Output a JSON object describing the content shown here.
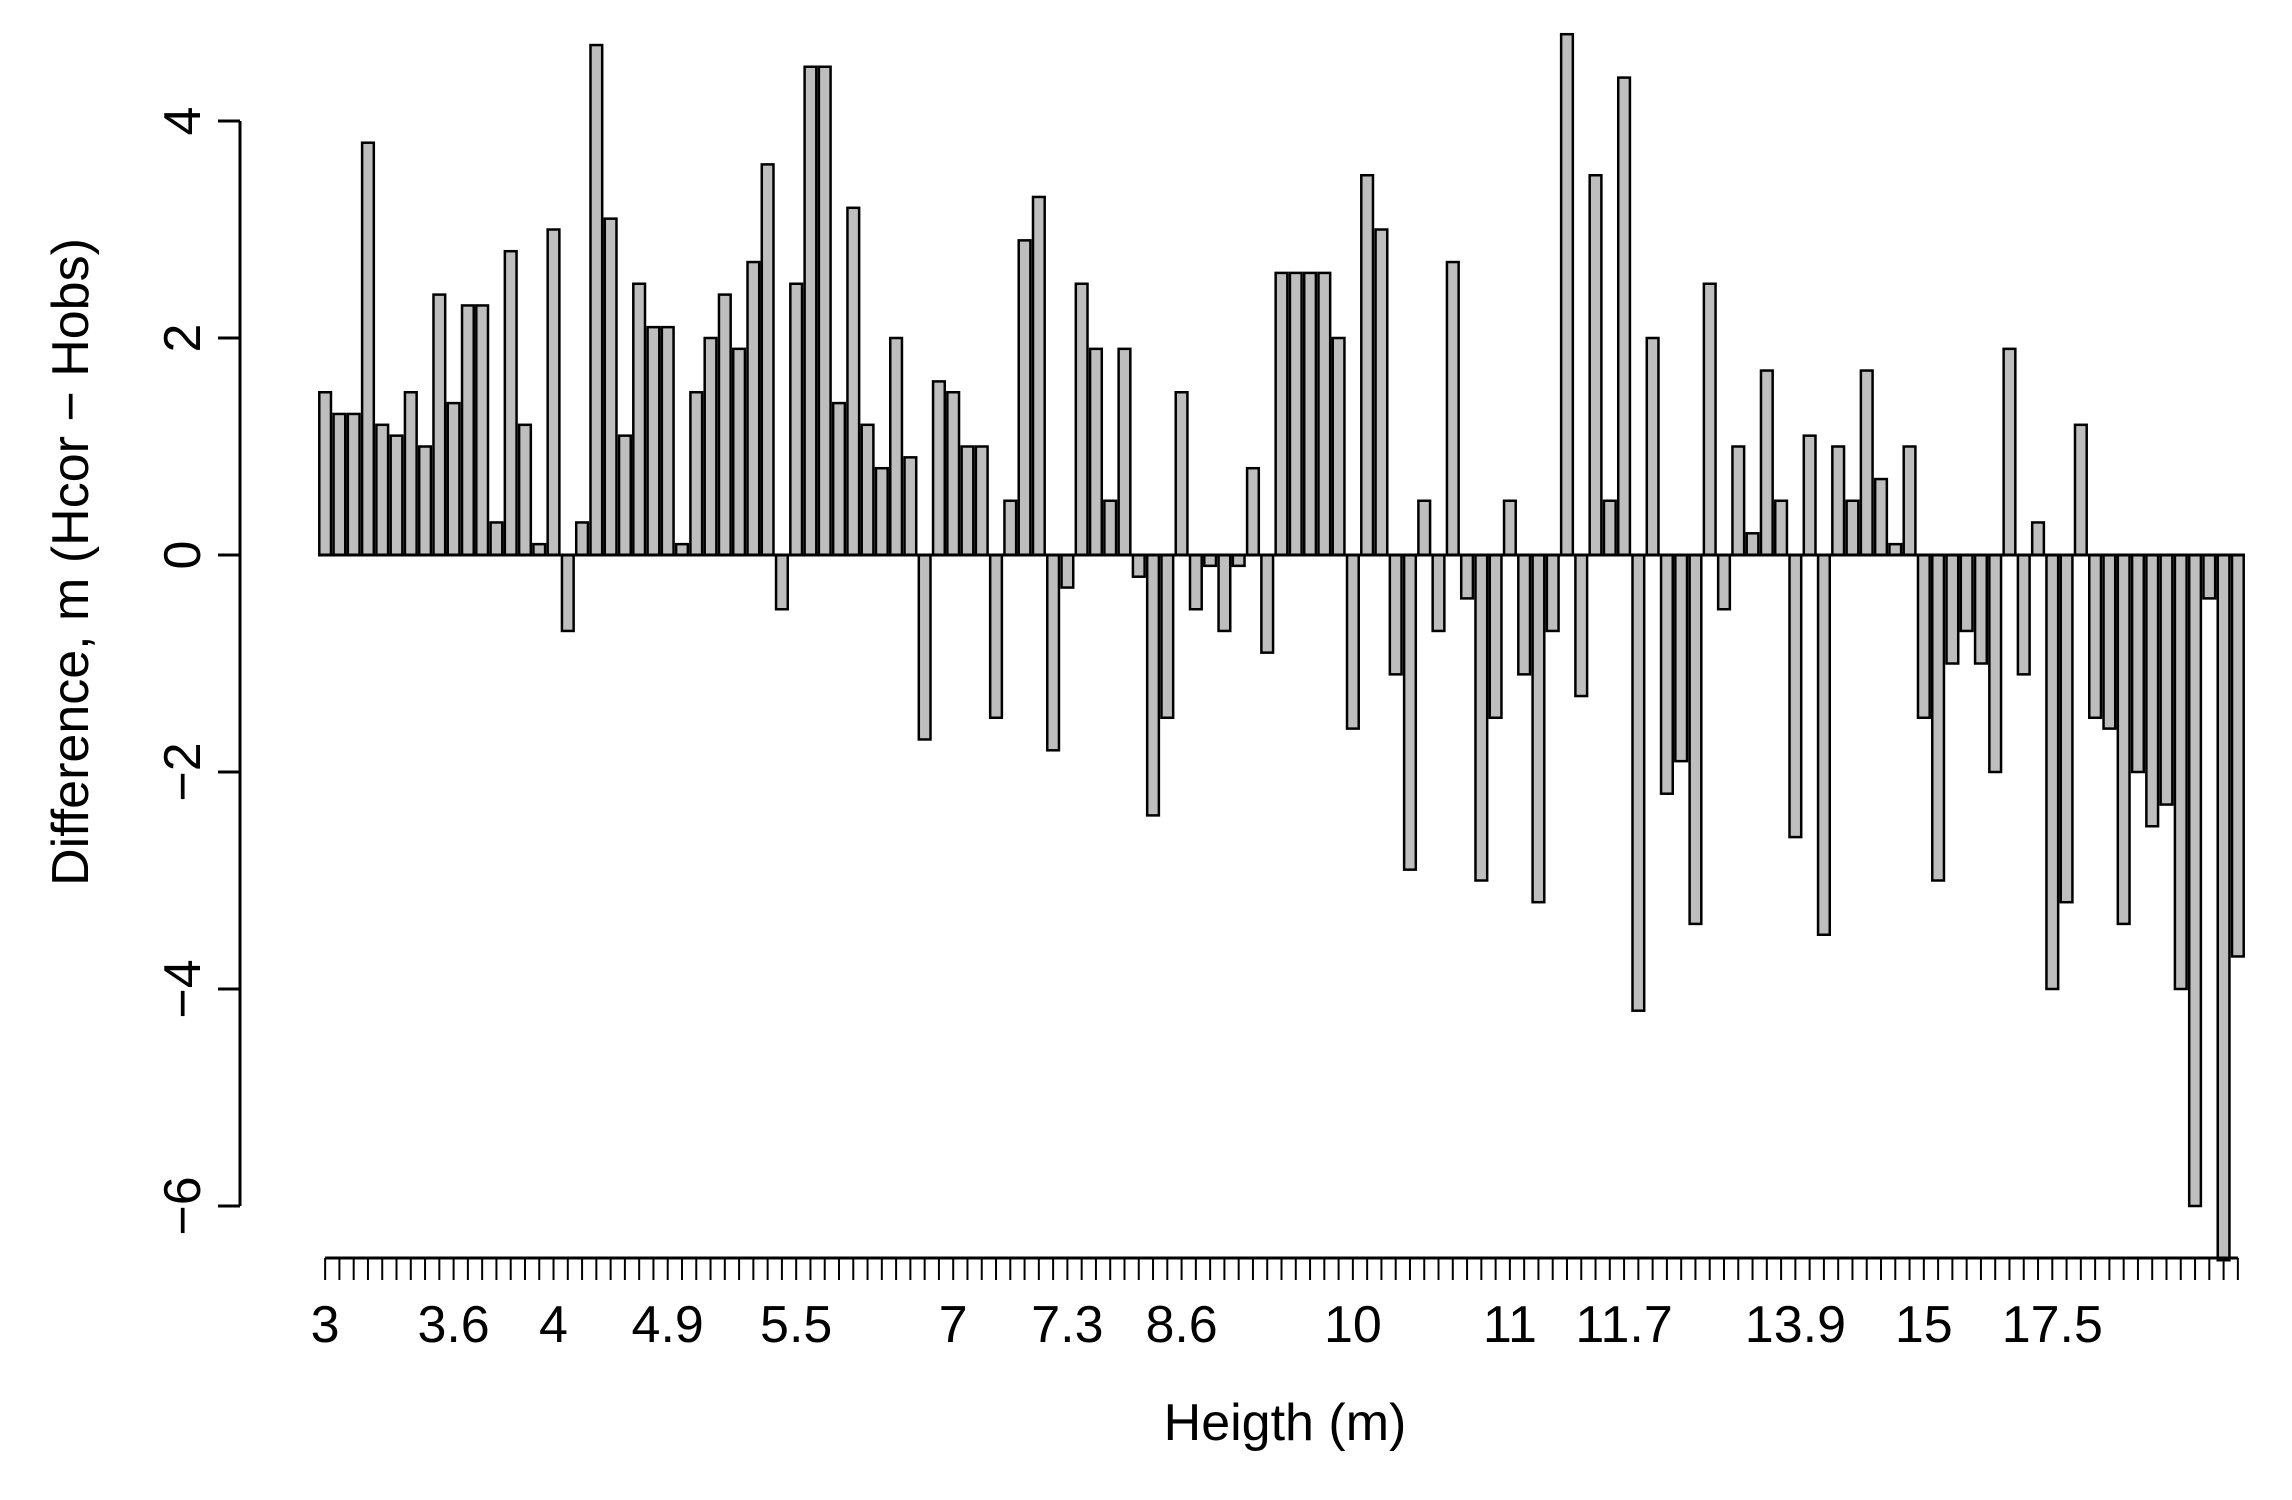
{
  "chart_data": {
    "type": "bar",
    "xlabel": "Heigth (m)",
    "ylabel": "Difference, m (Hcor − Hobs)",
    "ylim": [
      -6.5,
      4.9
    ],
    "yticks": [
      -6,
      -4,
      -2,
      0,
      2,
      4
    ],
    "ytick_labels": [
      "−6",
      "−4",
      "−2",
      "0",
      "2",
      "4"
    ],
    "xtick_labels": [
      "3",
      "3.6",
      "4",
      "4.9",
      "5.5",
      "7",
      "7.3",
      "8.6",
      "10",
      "11",
      "11.7",
      "13.9",
      "15",
      "17.5"
    ],
    "xtick_label_bar_index": [
      0,
      9,
      16,
      24,
      33,
      44,
      52,
      60,
      72,
      83,
      91,
      103,
      112,
      121
    ],
    "bar_fill": "#bebebe",
    "bar_stroke": "#000000",
    "values": [
      1.5,
      1.3,
      1.3,
      3.8,
      1.2,
      1.1,
      1.5,
      1.0,
      2.4,
      1.4,
      2.3,
      2.3,
      0.3,
      2.8,
      1.2,
      0.1,
      3.0,
      -0.7,
      0.3,
      4.7,
      3.1,
      1.1,
      2.5,
      2.1,
      2.1,
      0.1,
      1.5,
      2.0,
      2.4,
      1.9,
      2.7,
      3.6,
      -0.5,
      2.5,
      4.5,
      4.5,
      1.4,
      3.2,
      1.2,
      0.8,
      2.0,
      0.9,
      -1.7,
      1.6,
      1.5,
      1.0,
      1.0,
      -1.5,
      0.5,
      2.9,
      3.3,
      -1.8,
      -0.3,
      2.5,
      1.9,
      0.5,
      1.9,
      -0.2,
      -2.4,
      -1.5,
      1.5,
      -0.5,
      -0.1,
      -0.7,
      -0.1,
      0.8,
      -0.9,
      2.6,
      2.6,
      2.6,
      2.6,
      2.0,
      -1.6,
      3.5,
      3.0,
      -1.1,
      -2.9,
      0.5,
      -0.7,
      2.7,
      -0.4,
      -3.0,
      -1.5,
      0.5,
      -1.1,
      -3.2,
      -0.7,
      4.8,
      -1.3,
      3.5,
      0.5,
      4.4,
      -4.2,
      2.0,
      -2.2,
      -1.9,
      -3.4,
      2.5,
      -0.5,
      1.0,
      0.2,
      1.7,
      0.5,
      -2.6,
      1.1,
      -3.5,
      1.0,
      0.5,
      1.7,
      0.7,
      0.1,
      1.0,
      -1.5,
      -3.0,
      -1.0,
      -0.7,
      -1.0,
      -2.0,
      1.9,
      -1.1,
      0.3,
      -4.0,
      -3.2,
      1.2,
      -1.5,
      -1.6,
      -3.4,
      -2.0,
      -2.5,
      -2.3,
      -4.0,
      -6.0,
      -0.4,
      -6.5,
      -3.7
    ]
  }
}
